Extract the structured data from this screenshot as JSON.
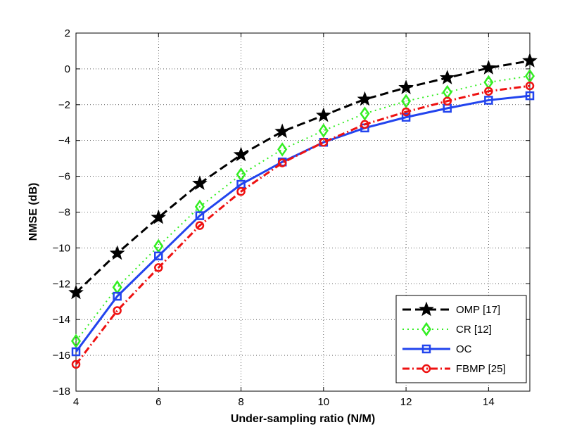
{
  "chart_data": {
    "type": "line",
    "title": "",
    "xlabel": "Under-sampling ratio (N/M)",
    "ylabel": "NMSE (dB)",
    "xlim": [
      4,
      15
    ],
    "ylim": [
      -18,
      2
    ],
    "xticks": [
      4,
      6,
      8,
      10,
      12,
      14
    ],
    "yticks": [
      2,
      0,
      -2,
      -4,
      -6,
      -8,
      -10,
      -12,
      -14,
      -16,
      -18
    ],
    "grid": true,
    "legend_position": "bottom-right",
    "x": [
      4,
      5,
      6,
      7,
      8,
      9,
      10,
      11,
      12,
      13,
      14,
      15
    ],
    "series": [
      {
        "name": "OMP [17]",
        "color": "#000000",
        "line_style": "dashed",
        "marker": "star",
        "values": [
          -12.5,
          -10.3,
          -8.3,
          -6.4,
          -4.8,
          -3.5,
          -2.6,
          -1.7,
          -1.05,
          -0.5,
          0.05,
          0.45
        ]
      },
      {
        "name": "CR [12]",
        "color": "#33ee22",
        "line_style": "dotted",
        "marker": "diamond",
        "values": [
          -15.2,
          -12.2,
          -9.9,
          -7.7,
          -5.9,
          -4.5,
          -3.45,
          -2.5,
          -1.8,
          -1.3,
          -0.75,
          -0.4
        ]
      },
      {
        "name": "OC",
        "color": "#2244ee",
        "line_style": "solid",
        "marker": "square",
        "values": [
          -15.8,
          -12.7,
          -10.45,
          -8.2,
          -6.45,
          -5.2,
          -4.1,
          -3.3,
          -2.7,
          -2.2,
          -1.75,
          -1.5
        ]
      },
      {
        "name": "FBMP [25]",
        "color": "#ee1111",
        "line_style": "dashdot",
        "marker": "circle",
        "values": [
          -16.5,
          -13.5,
          -11.1,
          -8.75,
          -6.85,
          -5.25,
          -4.1,
          -3.1,
          -2.4,
          -1.8,
          -1.25,
          -0.95
        ]
      }
    ]
  }
}
